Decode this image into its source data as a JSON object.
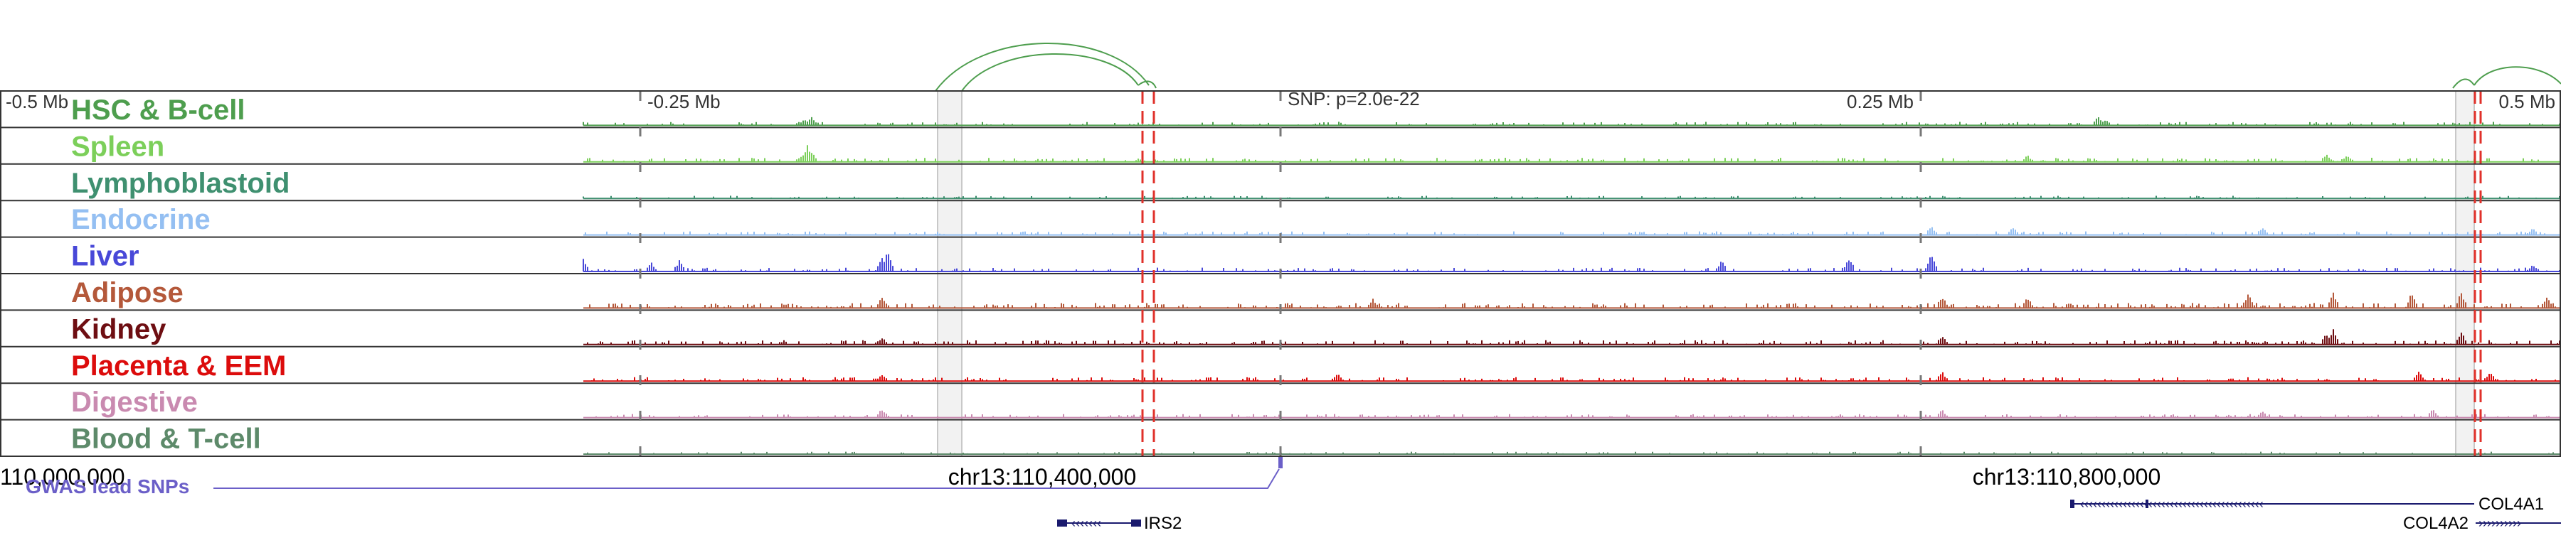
{
  "genome_browser": {
    "scale": {
      "left": "-0.5 Mb",
      "mid_left": "-0.25 Mb",
      "snp": "SNP: p=2.0e-22",
      "mid_right": "0.25 Mb",
      "right": "0.5 Mb"
    },
    "tracks": [
      {
        "label": "HSC & B-cell",
        "color": "#4e9e4e"
      },
      {
        "label": "Spleen",
        "color": "#7ccf5a"
      },
      {
        "label": "Lymphoblastoid",
        "color": "#3f9070"
      },
      {
        "label": "Endocrine",
        "color": "#94bff2"
      },
      {
        "label": "Liver",
        "color": "#4848d8"
      },
      {
        "label": "Adipose",
        "color": "#b4583a"
      },
      {
        "label": "Kidney",
        "color": "#6e0e12"
      },
      {
        "label": "Placenta & EEM",
        "color": "#dc0c0c"
      },
      {
        "label": "Digestive",
        "color": "#c98ab0"
      },
      {
        "label": "Blood & T-cell",
        "color": "#5d8a6a"
      }
    ],
    "coordinates": {
      "left": "110,000,000",
      "mid": "chr13:110,400,000",
      "right": "chr13:110,800,000"
    },
    "gwas_label": "GWAS lead SNPs",
    "genes": [
      {
        "name": "IRS2",
        "strand": "-"
      },
      {
        "name": "COL4A1",
        "strand": "-"
      },
      {
        "name": "COL4A2",
        "strand": "+"
      }
    ],
    "colors": {
      "loop": "#4e9e4e",
      "snp_marker": "#e0302a",
      "gwas": "#6b5fc8",
      "gene": "#1a1a6e",
      "frame": "#333333",
      "guide": "#777777"
    }
  }
}
